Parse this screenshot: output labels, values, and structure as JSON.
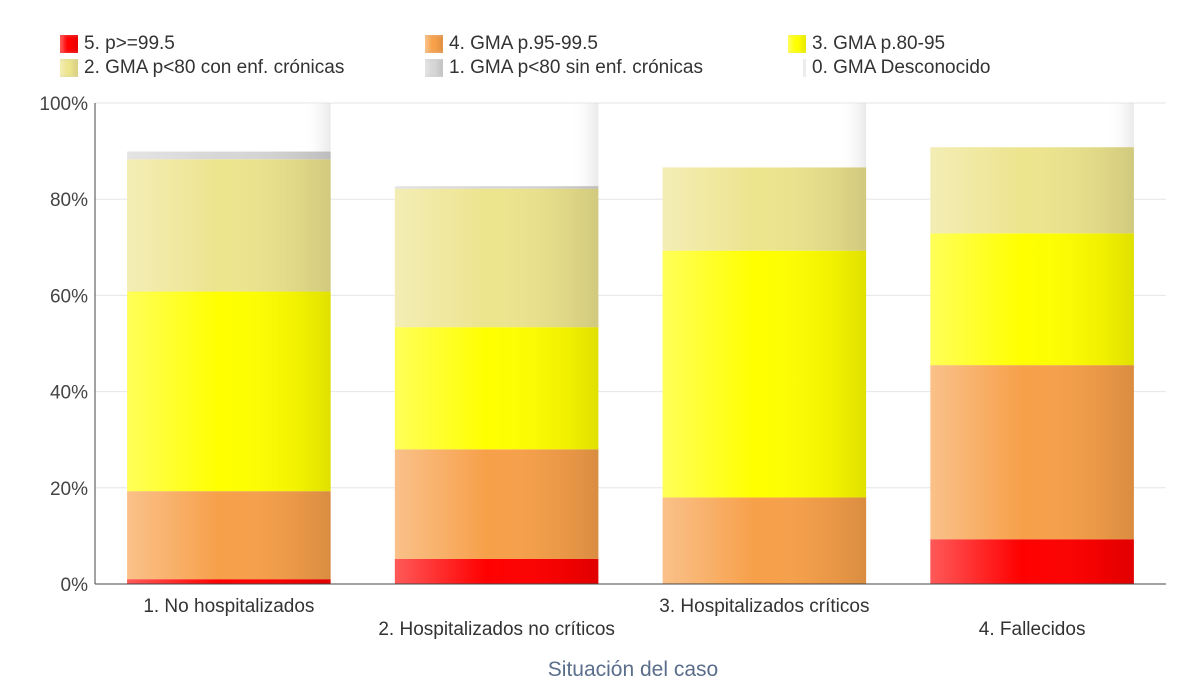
{
  "chart_data": {
    "type": "bar",
    "stacked": true,
    "xlabel": "Situación del caso",
    "ylabel": "",
    "ylim": [
      0,
      100
    ],
    "y_ticks": [
      "0%",
      "20%",
      "40%",
      "60%",
      "80%",
      "100%"
    ],
    "grid": true,
    "legend_position": "top",
    "categories": [
      "1. No hospitalizados",
      "2. Hospitalizados no críticos",
      "3. Hospitalizados críticos",
      "4. Fallecidos"
    ],
    "series": [
      {
        "name": "5. p>=99.5",
        "color": "#ff0000",
        "values": [
          1,
          5.2,
          0,
          9.3
        ]
      },
      {
        "name": "4. GMA p.95-99.5",
        "color": "#f7a04a",
        "values": [
          18.3,
          22.8,
          18,
          36.2
        ]
      },
      {
        "name": "3. GMA p.80-95",
        "color": "#ffff00",
        "values": [
          41.5,
          25.4,
          51.3,
          27.4
        ]
      },
      {
        "name": "2. GMA p<80 con enf. crónicas",
        "color": "#ede48e",
        "values": [
          27.5,
          28.8,
          17.3,
          17.9
        ]
      },
      {
        "name": "1. GMA p<80 sin enf. crónicas",
        "color": "#d6d6d6",
        "values": [
          1.6,
          0.5,
          0,
          0
        ]
      },
      {
        "name": "0. GMA Desconocido",
        "color": "#ececec",
        "values": [
          0,
          0,
          0,
          0
        ]
      }
    ]
  }
}
